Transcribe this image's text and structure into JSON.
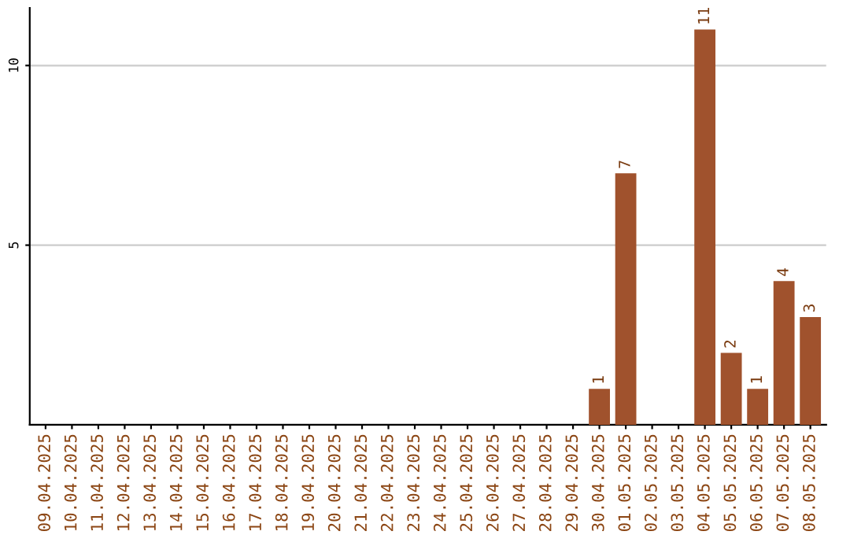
{
  "chart_data": {
    "type": "bar",
    "categories": [
      "09.04.2025",
      "10.04.2025",
      "11.04.2025",
      "12.04.2025",
      "13.04.2025",
      "14.04.2025",
      "15.04.2025",
      "16.04.2025",
      "17.04.2025",
      "18.04.2025",
      "19.04.2025",
      "20.04.2025",
      "21.04.2025",
      "22.04.2025",
      "23.04.2025",
      "24.04.2025",
      "25.04.2025",
      "26.04.2025",
      "27.04.2025",
      "28.04.2025",
      "29.04.2025",
      "30.04.2025",
      "01.05.2025",
      "02.05.2025",
      "03.05.2025",
      "04.05.2025",
      "05.05.2025",
      "06.05.2025",
      "07.05.2025",
      "08.05.2025"
    ],
    "values": [
      0,
      0,
      0,
      0,
      0,
      0,
      0,
      0,
      0,
      0,
      0,
      0,
      0,
      0,
      0,
      0,
      0,
      0,
      0,
      0,
      0,
      1,
      7,
      0,
      0,
      11,
      2,
      1,
      4,
      3
    ],
    "value_labels": [
      null,
      null,
      null,
      null,
      null,
      null,
      null,
      null,
      null,
      null,
      null,
      null,
      null,
      null,
      null,
      null,
      null,
      null,
      null,
      null,
      null,
      "1",
      "7",
      null,
      null,
      "11",
      "2",
      "1",
      "4",
      "3"
    ],
    "color": "#a0522d",
    "ylim": [
      0,
      11.6
    ],
    "yticks": [
      5,
      10
    ],
    "grid": "y"
  }
}
